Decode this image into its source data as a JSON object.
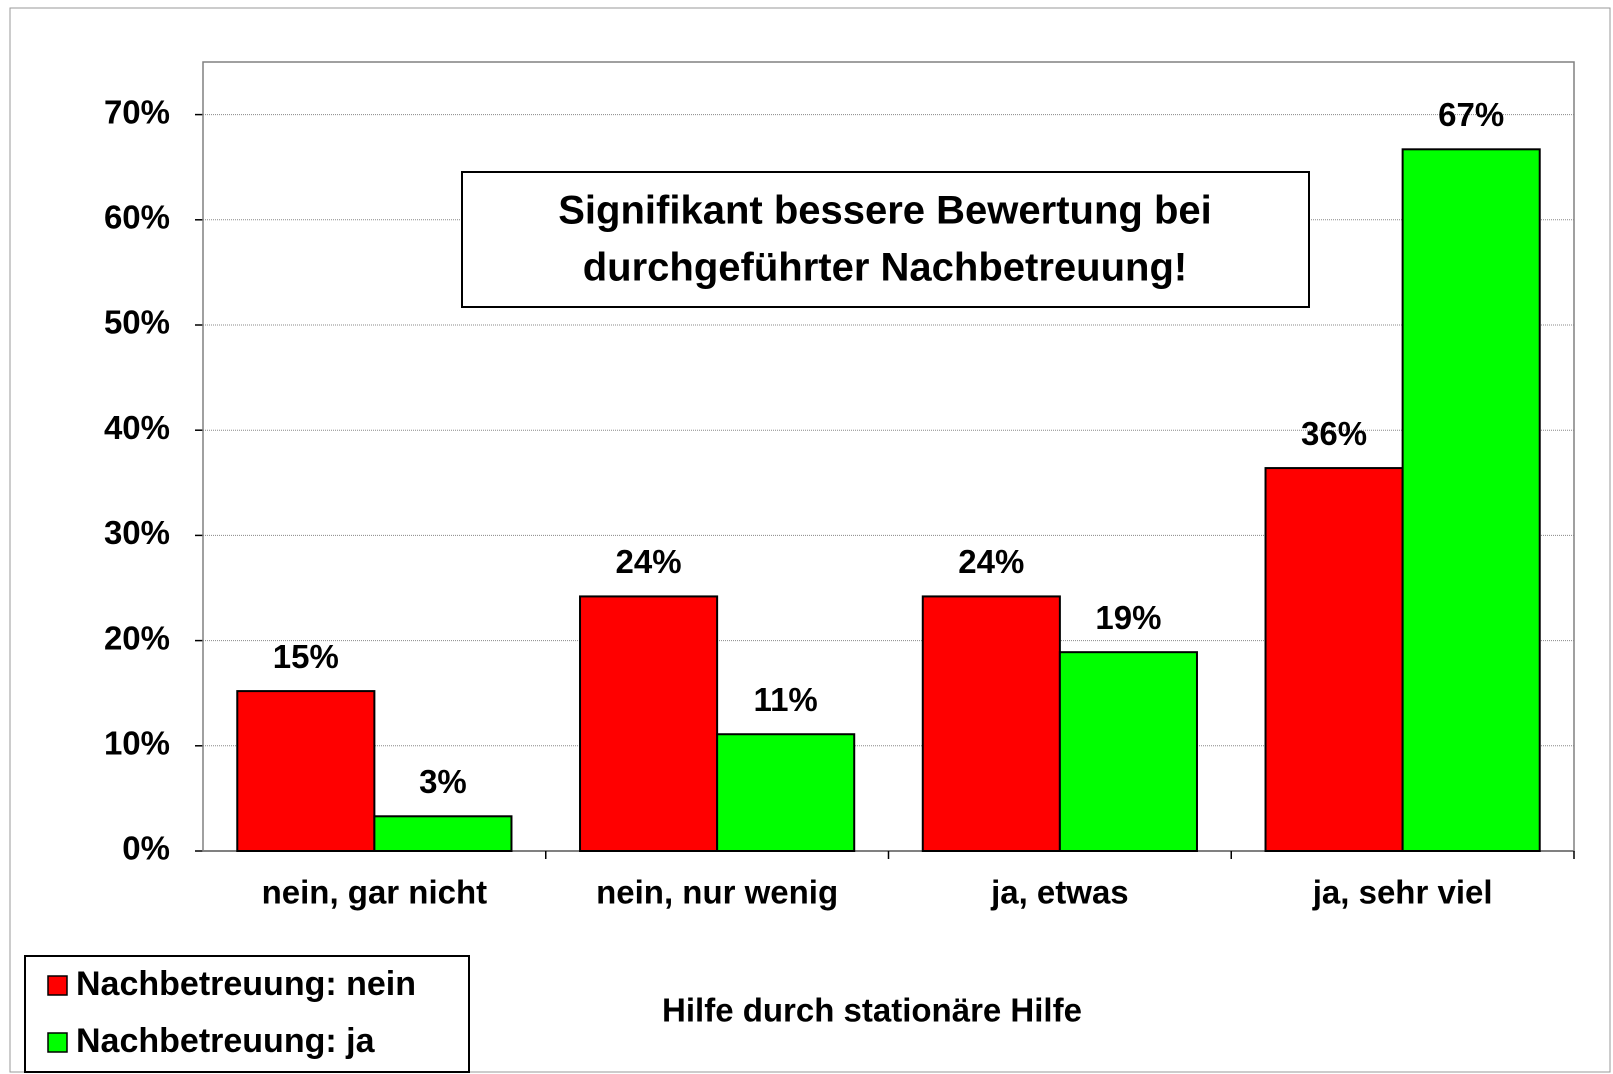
{
  "chart_data": {
    "type": "bar",
    "annotation": [
      "Signifikant bessere Bewertung bei",
      "durchgeführter Nachbetreuung!"
    ],
    "x_label": "Hilfe durch stationäre Hilfe",
    "categories": [
      "nein, gar nicht",
      "nein, nur wenig",
      "ja, etwas",
      "ja, sehr viel"
    ],
    "series": [
      {
        "name": "Nachbetreuung: nein",
        "color": "#ff0000",
        "values": [
          15.2,
          24.2,
          24.2,
          36.4
        ],
        "value_labels": [
          "15%",
          "24%",
          "24%",
          "36%"
        ]
      },
      {
        "name": "Nachbetreuung: ja",
        "color": "#00ff00",
        "values": [
          3.3,
          11.1,
          18.9,
          66.7
        ],
        "value_labels": [
          "3%",
          "11%",
          "19%",
          "67%"
        ]
      }
    ],
    "ylim": [
      0,
      75
    ],
    "yticks": [
      {
        "value": 0,
        "label": "0%"
      },
      {
        "value": 10,
        "label": "10%"
      },
      {
        "value": 20,
        "label": "20%"
      },
      {
        "value": 30,
        "label": "30%"
      },
      {
        "value": 40,
        "label": "40%"
      },
      {
        "value": 50,
        "label": "50%"
      },
      {
        "value": 60,
        "label": "60%"
      },
      {
        "value": 70,
        "label": "70%"
      }
    ],
    "grid": true,
    "legend": "bottom-left"
  }
}
